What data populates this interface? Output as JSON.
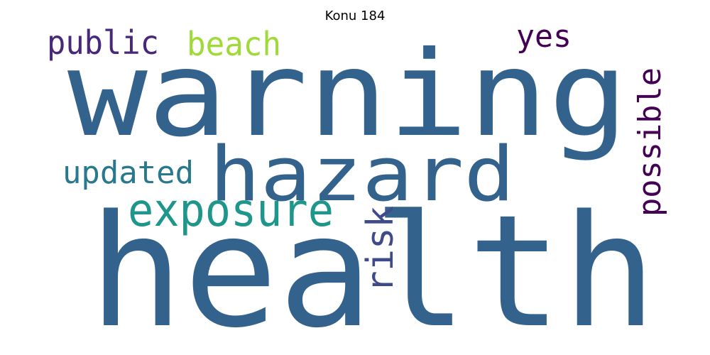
{
  "title": "Konu 184",
  "words": [
    {
      "text": "health",
      "color": "#33638d"
    },
    {
      "text": "warning",
      "color": "#33638d"
    },
    {
      "text": "hazard",
      "color": "#33638d"
    },
    {
      "text": "exposure",
      "color": "#1f968b"
    },
    {
      "text": "updated",
      "color": "#2a788e"
    },
    {
      "text": "public",
      "color": "#482878"
    },
    {
      "text": "beach",
      "color": "#a0da39"
    },
    {
      "text": "yes",
      "color": "#440154"
    },
    {
      "text": "possible",
      "color": "#440154"
    },
    {
      "text": "risk",
      "color": "#3e4a89"
    }
  ]
}
